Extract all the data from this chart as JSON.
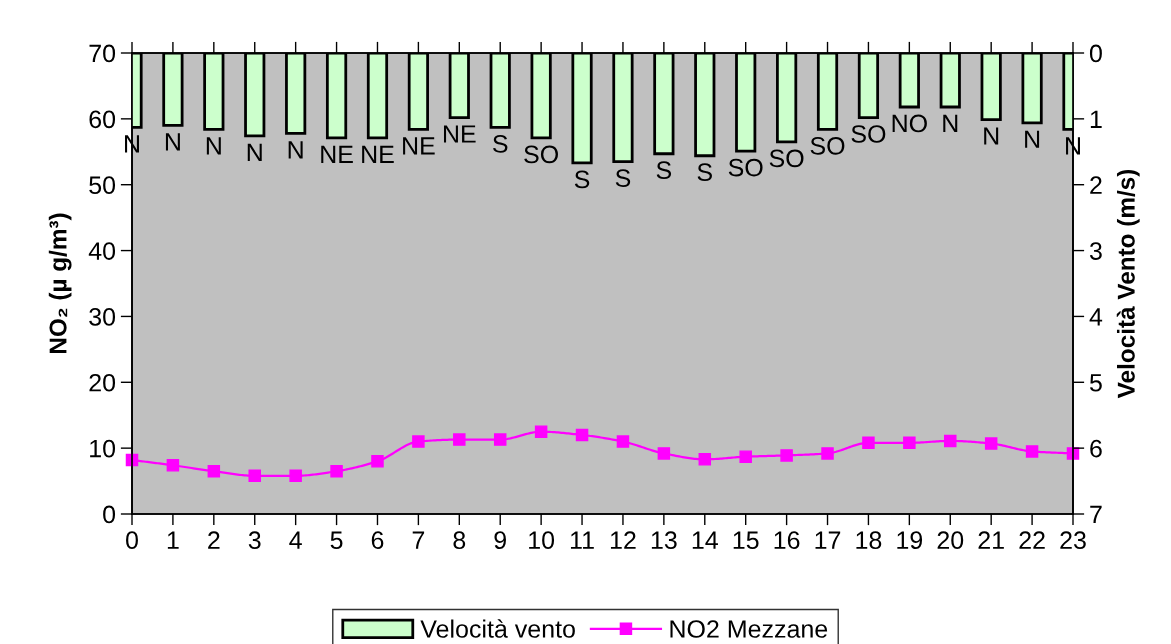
{
  "chart_data": {
    "type": "bar",
    "ylabel": "NO₂ (µ g/m³)",
    "y2label": "Velocità Vento (m/s)",
    "x": [
      0,
      1,
      2,
      3,
      4,
      5,
      6,
      7,
      8,
      9,
      10,
      11,
      12,
      13,
      14,
      15,
      16,
      17,
      18,
      19,
      20,
      21,
      22,
      23
    ],
    "xlim": [
      0,
      23
    ],
    "xticks": [
      0,
      1,
      2,
      3,
      4,
      5,
      6,
      7,
      8,
      9,
      10,
      11,
      12,
      13,
      14,
      15,
      16,
      17,
      18,
      19,
      20,
      21,
      22,
      23
    ],
    "ylim": [
      0,
      70
    ],
    "yticks": [
      0,
      10,
      20,
      30,
      40,
      50,
      60,
      70
    ],
    "y2lim": [
      7,
      0
    ],
    "y2ticks": [
      0,
      1,
      2,
      3,
      4,
      5,
      6,
      7
    ],
    "legend": "bottom",
    "marker": "square",
    "line_style": "solid",
    "series": [
      {
        "name": "Velocità vento",
        "axis": "y2",
        "color": "#ccffcc",
        "values": [
          1.13,
          1.1,
          1.16,
          1.26,
          1.22,
          1.29,
          1.29,
          1.16,
          0.98,
          1.13,
          1.29,
          1.67,
          1.65,
          1.53,
          1.56,
          1.49,
          1.35,
          1.16,
          0.98,
          0.82,
          0.82,
          1.01,
          1.06,
          1.16
        ],
        "value_labels": [
          "N",
          "N",
          "N",
          "N",
          "N",
          "NE",
          "NE",
          "NE",
          "NE",
          "S",
          "SO",
          "S",
          "S",
          "S",
          "S",
          "SO",
          "SO",
          "SO",
          "SO",
          "NO",
          "N",
          "N",
          "N",
          "N"
        ]
      },
      {
        "name": "NO2 Mezzane",
        "type": "line",
        "axis": "y",
        "color": "#ff00ff",
        "values": [
          8.2,
          7.4,
          6.5,
          5.8,
          5.8,
          6.5,
          8.0,
          11.0,
          11.3,
          11.3,
          12.5,
          12.0,
          11.0,
          9.2,
          8.3,
          8.7,
          8.9,
          9.2,
          10.8,
          10.8,
          11.1,
          10.7,
          9.5,
          9.2
        ]
      }
    ]
  }
}
